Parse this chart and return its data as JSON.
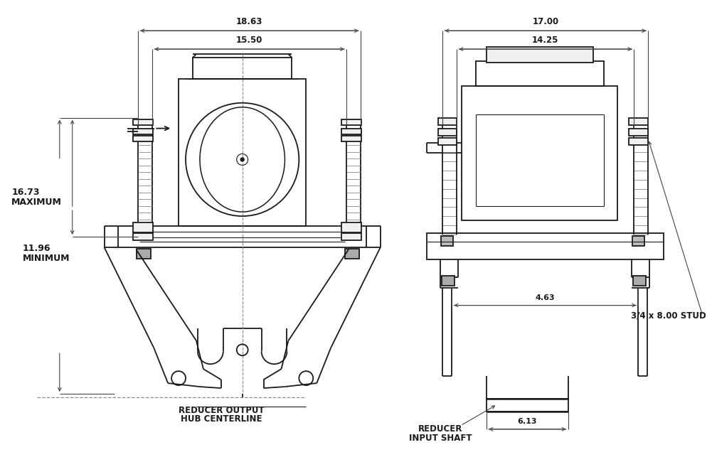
{
  "bg_color": "#ffffff",
  "lc": "#1a1a1a",
  "gc": "#888888",
  "dc": "#444444",
  "dims": {
    "d1863": "18.63",
    "d1550": "15.50",
    "d1700": "17.00",
    "d1425": "14.25",
    "d1673": "16.73",
    "maximum": "MAXIMUM",
    "d1196": "11.96",
    "minimum": "MINIMUM",
    "stud": "3/4 x 8.00 STUD",
    "d463": "4.63",
    "d613": "6.13",
    "label_out1": "REDUCER OUTPUT",
    "label_out2": "HUB CENTERLINE",
    "label_in1": "REDUCER",
    "label_in2": "INPUT SHAFT"
  }
}
